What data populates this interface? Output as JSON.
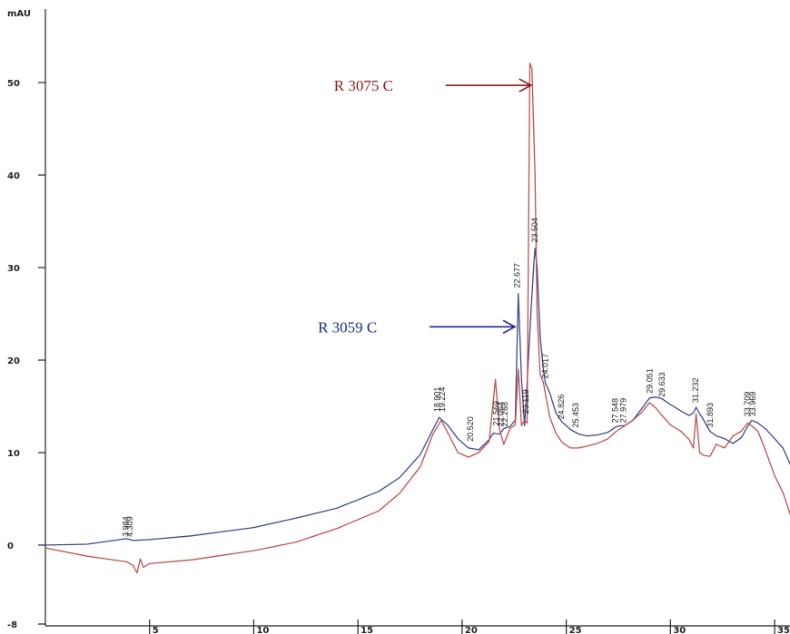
{
  "chart_data": {
    "type": "line",
    "ylabel": "mAU",
    "xlim": [
      0,
      36
    ],
    "ylim": [
      -8,
      55
    ],
    "yticks": [
      -8,
      0,
      10,
      20,
      30,
      40,
      50
    ],
    "ytick_labels": [
      "-8",
      "0",
      "10",
      "20",
      "30",
      "40",
      "50"
    ],
    "xticks": [
      5,
      10,
      15,
      20,
      25,
      30,
      35
    ],
    "xtick_labels": [
      "5",
      "10",
      "15",
      "20",
      "25",
      "30",
      "35"
    ],
    "grid": false,
    "series": [
      {
        "color": "#3a4a8c",
        "x": [
          0,
          2,
          3.9,
          4.2,
          5,
          7,
          10,
          12,
          14,
          16,
          17,
          18,
          18.6,
          18.9,
          19.3,
          19.8,
          20.3,
          20.8,
          21.3,
          21.5,
          21.8,
          22.0,
          22.3,
          22.55,
          22.7,
          22.85,
          23.0,
          23.12,
          23.3,
          23.45,
          23.5,
          23.6,
          23.75,
          23.9,
          24.0,
          24.2,
          24.5,
          24.8,
          25.2,
          25.6,
          26,
          26.5,
          27,
          27.4,
          27.6,
          27.8,
          28.2,
          28.6,
          29.0,
          29.3,
          29.6,
          30.0,
          30.5,
          30.9,
          31.1,
          31.23,
          31.4,
          31.6,
          31.9,
          32.2,
          32.6,
          33.0,
          33.4,
          33.7,
          33.9,
          34.2,
          34.6,
          35.0,
          35.4,
          35.8,
          36
        ],
        "y": [
          0,
          0.1,
          0.7,
          0.5,
          0.6,
          1,
          1.9,
          2.9,
          4,
          5.8,
          7.3,
          9.8,
          12.5,
          13.8,
          13,
          11.5,
          10.5,
          10.3,
          11.4,
          12.1,
          12.0,
          12.6,
          12.8,
          13.5,
          27.2,
          18,
          12.9,
          17.5,
          25,
          30.5,
          32.1,
          30,
          22.5,
          19,
          17.5,
          16.5,
          14.3,
          13.3,
          12.5,
          12,
          11.8,
          11.9,
          12.2,
          12.8,
          12.9,
          12.9,
          13.5,
          14.7,
          15.9,
          16,
          15.8,
          15.2,
          14.5,
          14,
          14.3,
          14.9,
          14.2,
          13.5,
          12.3,
          11.8,
          11.5,
          11.0,
          11.6,
          12.8,
          13.5,
          13.2,
          12.5,
          11.5,
          10.5,
          8.5,
          7.1
        ]
      },
      {
        "color": "#c0504d",
        "x": [
          0,
          2,
          3.9,
          4.2,
          4.4,
          4.55,
          4.7,
          5,
          7,
          10,
          12,
          14,
          16,
          17,
          18,
          18.6,
          19.0,
          19.3,
          19.8,
          20.3,
          20.8,
          21.3,
          21.6,
          21.8,
          22.0,
          22.3,
          22.55,
          22.7,
          22.85,
          23.0,
          23.12,
          23.25,
          23.35,
          23.5,
          23.6,
          23.75,
          23.9,
          24.0,
          24.2,
          24.5,
          24.8,
          25.2,
          25.6,
          26,
          26.5,
          27,
          27.4,
          27.6,
          27.8,
          28.2,
          28.6,
          29.0,
          29.3,
          29.6,
          30.0,
          30.5,
          30.9,
          31.1,
          31.23,
          31.4,
          31.6,
          31.9,
          32.2,
          32.6,
          33.0,
          33.4,
          33.7,
          33.9,
          34.2,
          34.6,
          35.0,
          35.4,
          35.8,
          36
        ],
        "y": [
          -0.3,
          -1.2,
          -1.8,
          -2.2,
          -3.0,
          -1.5,
          -2.4,
          -2.0,
          -1.6,
          -0.6,
          0.3,
          1.8,
          3.7,
          5.6,
          8.5,
          12.0,
          13.5,
          12.2,
          10.0,
          9.5,
          10.0,
          11.2,
          17.9,
          12.5,
          10.9,
          12.6,
          13.0,
          19.0,
          12.9,
          13.5,
          13.2,
          52.1,
          51.5,
          40,
          25,
          18.4,
          17.6,
          16.3,
          13.9,
          12.1,
          11.1,
          10.5,
          10.5,
          10.7,
          11.0,
          11.5,
          12.3,
          12.6,
          12.9,
          13.5,
          14.3,
          15.4,
          14.8,
          14.0,
          13.0,
          12.3,
          11.4,
          10.5,
          14.2,
          10.0,
          9.7,
          9.6,
          10.9,
          10.5,
          11.8,
          12.3,
          13.2,
          12.9,
          12.3,
          10.0,
          7.5,
          5.7,
          3.0,
          1.0
        ]
      }
    ],
    "peak_labels": [
      {
        "x": 3.85,
        "y": 0.7,
        "text": "3.984"
      },
      {
        "x": 4.05,
        "y": 0.7,
        "text": "4.309"
      },
      {
        "x": 18.8,
        "y": 14.2,
        "text": "18.901"
      },
      {
        "x": 19.05,
        "y": 14.2,
        "text": "19.224"
      },
      {
        "x": 20.4,
        "y": 11.0,
        "text": "20.520"
      },
      {
        "x": 21.65,
        "y": 12.7,
        "text": "21.569"
      },
      {
        "x": 21.85,
        "y": 12.6,
        "text": "22.064"
      },
      {
        "x": 22.05,
        "y": 12.6,
        "text": "22.268"
      },
      {
        "x": 22.65,
        "y": 27.6,
        "text": "22.677"
      },
      {
        "x": 23.05,
        "y": 14.0,
        "text": "23.119"
      },
      {
        "x": 23.5,
        "y": 32.5,
        "text": "23.504"
      },
      {
        "x": 24.0,
        "y": 17.8,
        "text": "24.017"
      },
      {
        "x": 24.75,
        "y": 13.4,
        "text": "24.826"
      },
      {
        "x": 25.45,
        "y": 12.5,
        "text": "25.453"
      },
      {
        "x": 27.35,
        "y": 13.0,
        "text": "27.548"
      },
      {
        "x": 27.75,
        "y": 13.0,
        "text": "27.979"
      },
      {
        "x": 29.0,
        "y": 16.2,
        "text": "29.051"
      },
      {
        "x": 29.6,
        "y": 15.8,
        "text": "29.633"
      },
      {
        "x": 31.2,
        "y": 15.2,
        "text": "31.232"
      },
      {
        "x": 31.9,
        "y": 12.5,
        "text": "31.893"
      },
      {
        "x": 33.7,
        "y": 13.7,
        "text": "33.709"
      },
      {
        "x": 33.95,
        "y": 13.7,
        "text": "33.969"
      }
    ],
    "annotations": [
      {
        "text": "R 3075 C",
        "color": "#8b1a1a",
        "target_x": 23.35,
        "target_y": 49.7
      },
      {
        "text": "R 3059 C",
        "color": "#1f2a8c",
        "target_x": 22.58,
        "target_y": 23.6
      }
    ]
  }
}
